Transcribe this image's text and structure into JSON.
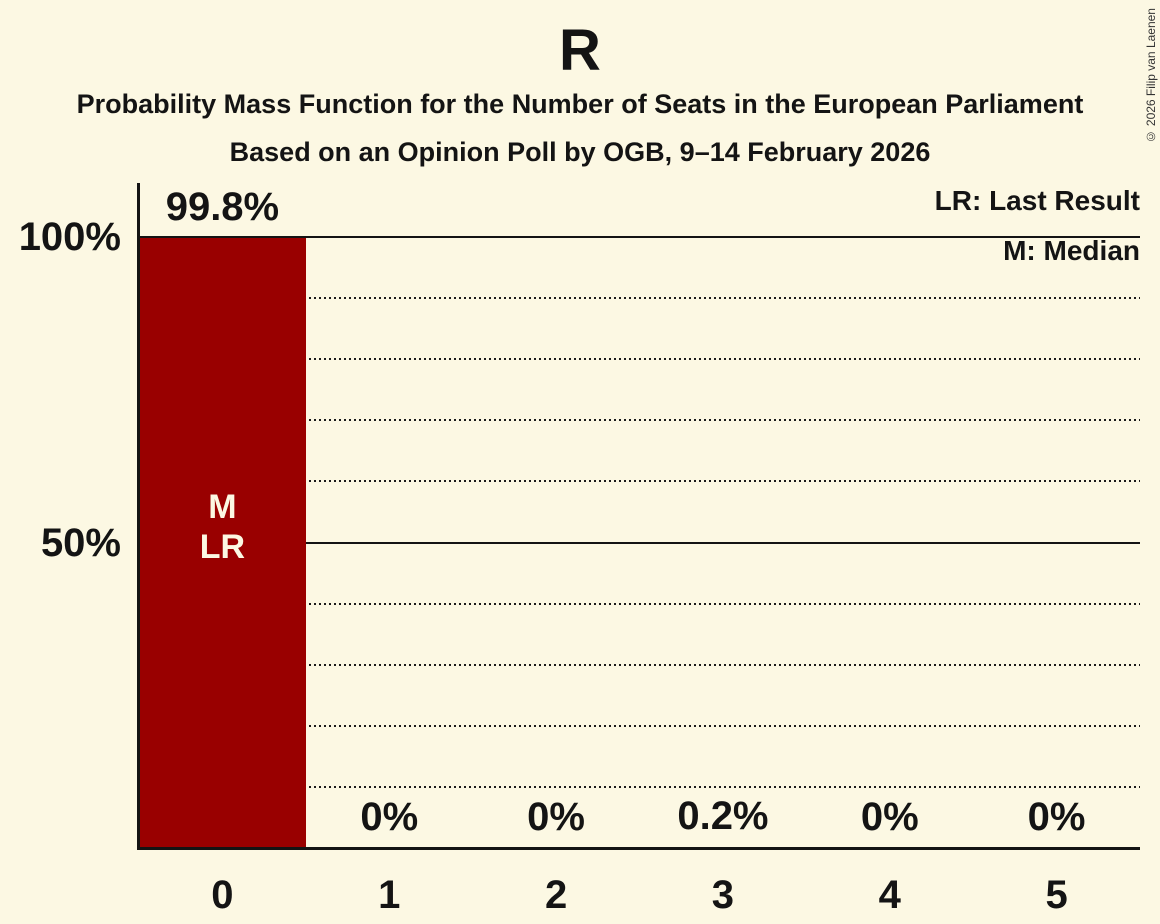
{
  "chart_data": {
    "type": "bar",
    "title": "R",
    "subtitle": "Probability Mass Function for the Number of Seats in the European Parliament",
    "subtitle2": "Based on an Opinion Poll by OGB, 9–14 February 2026",
    "categories": [
      "0",
      "1",
      "2",
      "3",
      "4",
      "5"
    ],
    "values": [
      99.8,
      0,
      0,
      0.2,
      0,
      0
    ],
    "value_labels": [
      "99.8%",
      "0%",
      "0%",
      "0.2%",
      "0%",
      "0%"
    ],
    "ylim": [
      0,
      100
    ],
    "yticks": [
      {
        "pct": 100,
        "label": "100%"
      },
      {
        "pct": 50,
        "label": "50%"
      }
    ],
    "solid_gridlines_pct": [
      100,
      50
    ],
    "dotted_gridlines_pct": [
      90,
      80,
      70,
      60,
      40,
      30,
      20,
      10
    ],
    "grid": "horizontal, dotted minor / solid at 50% and 100%",
    "legend_position": "top-right",
    "legend": [
      {
        "label": "LR: Last Result"
      },
      {
        "label": "M: Median"
      }
    ],
    "bar_annotations": [
      {
        "category": "0",
        "lines": [
          "M",
          "LR"
        ]
      }
    ],
    "copyright": "© 2026 Filip van Laenen",
    "colors": {
      "background": "#FCF8E3",
      "bar": "#990000",
      "bar_label": "#FCF8E3",
      "text": "#141414",
      "grid": "#1A1A1A"
    }
  }
}
